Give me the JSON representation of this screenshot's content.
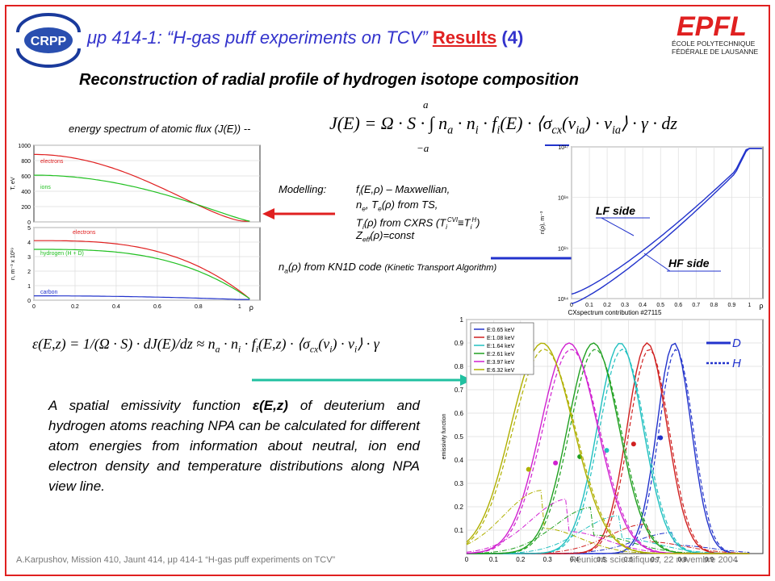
{
  "header": {
    "title_prefix": "μp 414-1: “H-gas puff experiments on TCV”",
    "title_link": "Results",
    "title_suffix": "(4)",
    "left_logo": "CRPP",
    "right_logo": "EPFL",
    "right_logo_line1": "ÉCOLE POLYTECHNIQUE",
    "right_logo_line2": "FÉDÉRALE DE LAUSANNE"
  },
  "subtitle": "Reconstruction of radial profile of hydrogen isotope composition",
  "flux_label": "energy spectrum of atomic flux (J(E)) --",
  "formula1": {
    "upper": "a",
    "lower": "−a",
    "parts": [
      "J(E) = Ω · S · ∫",
      "n",
      "a",
      " · n",
      "i",
      " · f",
      "i",
      "(E) · ⟨σ",
      "cx",
      "(v",
      "ia",
      ") · v",
      "ia",
      "⟩ · γ · dz"
    ]
  },
  "modelling": {
    "label": "Modelling:",
    "line1": [
      "f",
      "i",
      "(E,ρ) – Maxwellian,"
    ],
    "line2": [
      "n",
      "e",
      ", T",
      "e",
      "(ρ) from TS,"
    ],
    "line3": [
      "T",
      "i",
      "(ρ) from CXRS (T",
      "i",
      "CVI",
      "≡T",
      "i",
      "H",
      ")"
    ],
    "line4": [
      "Z",
      "eff",
      "(ρ)=const"
    ],
    "kn1d": [
      "n",
      "a",
      "(ρ) from KN1D code ",
      "(Kinetic Transport Algorithm)"
    ]
  },
  "formula2": [
    "ε(E,z) = 1/(Ω · S) · dJ(E)/dz ≈ n",
    "a",
    " · n",
    "i",
    " · f",
    "i",
    "(E,z) · ⟨σ",
    "cx",
    "(v",
    "i",
    ") · v",
    "i",
    "⟩ · γ"
  ],
  "paragraph": [
    "A spatial emissivity function ",
    "ε(E,z)",
    " of deuterium and hydrogen atoms reaching NPA can be calculated for different atom energies from information about neutral, ion end electron density and temperature distributions along NPA view line."
  ],
  "temperature_plot": {
    "ylabel": "T, eV",
    "yticks": [
      "1000",
      "800",
      "600",
      "400",
      "200",
      "0"
    ],
    "labels": [
      "electrons",
      "ions"
    ]
  },
  "density_plot": {
    "ylabel": "n, m⁻³ x 10¹⁹",
    "yticks": [
      "5",
      "4",
      "3",
      "2",
      "1",
      "0"
    ],
    "xticks": [
      "0",
      "0.2",
      "0.4",
      "0.6",
      "0.8",
      "1"
    ],
    "xlabel": "ρ",
    "labels": [
      "electrons",
      "hydrogen (H + D)",
      "carbon"
    ]
  },
  "neutral_plot": {
    "ylabel": "n(ρ), m⁻³",
    "yticks": [
      "10¹⁷",
      "10¹⁶",
      "10¹⁵",
      "10¹⁴"
    ],
    "xticks": [
      "0",
      "0.1",
      "0.2",
      "0.3",
      "0.4",
      "0.5",
      "0.6",
      "0.7",
      "0.8",
      "0.9",
      "1"
    ],
    "xlabel": "ρ",
    "lf": "LF side",
    "hf": "HF side"
  },
  "emissivity_plot": {
    "title": "CXspectrum contribution #27115",
    "ylabel": "emissivity function",
    "yticks": [
      "1",
      "0.9",
      "0.8",
      "0.7",
      "0.6",
      "0.5",
      "0.4",
      "0.3",
      "0.2",
      "0.1"
    ],
    "xticks": [
      "0",
      "0.1",
      "0.2",
      "0.3",
      "0.4",
      "0.5",
      "0.6",
      "0.7",
      "0.8",
      "0.9",
      "1"
    ],
    "legend": [
      "E:0.65 keV",
      "E:1.08 keV",
      "E:1.64 keV",
      "E:2.61 keV",
      "E:3.97 keV",
      "E:6.32 keV"
    ],
    "d": "D",
    "h": "H"
  },
  "footer": {
    "left": "A.Karpushov, Mission 410, Jaunt 414, μp 414-1 “H-gas puff experiments on TCV”",
    "right": "Réunions scientifiques, 22 novembre 2004"
  }
}
